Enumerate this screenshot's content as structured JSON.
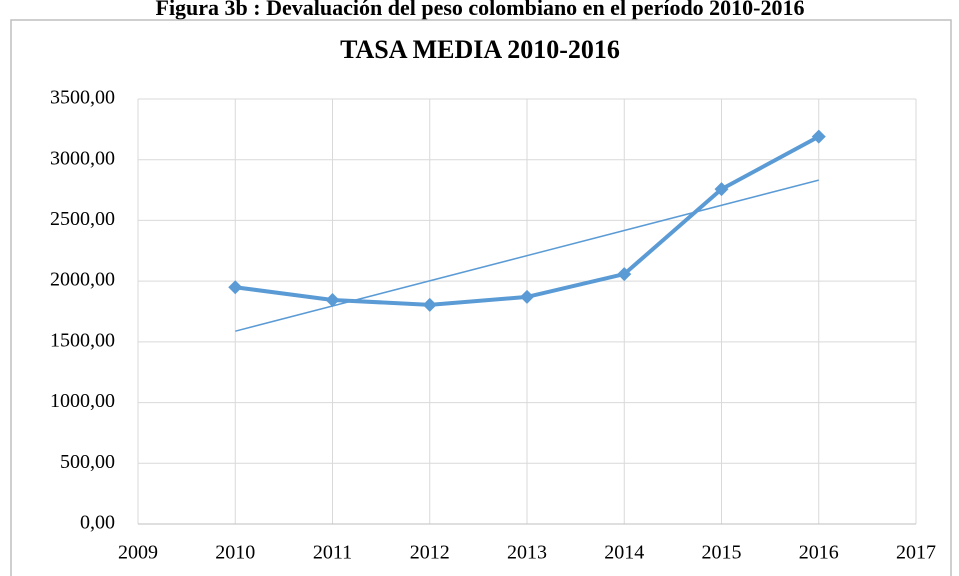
{
  "caption": "Figura 3b : Devaluación del peso colombiano en el período 2010-2016",
  "chart_data": {
    "type": "line",
    "title": "TASA MEDIA 2010-2016",
    "x": [
      2010,
      2011,
      2012,
      2013,
      2014,
      2015,
      2016
    ],
    "series": [
      {
        "color": "#5b9bd5",
        "values": [
          1950,
          1845,
          1805,
          1870,
          2058,
          2758,
          3190
        ]
      }
    ],
    "trendline": {
      "color": "#5b9bd5",
      "x": [
        2010,
        2016
      ],
      "values": [
        1588,
        2832
      ]
    },
    "xlim": [
      2009,
      2017
    ],
    "xticks": [
      2009,
      2010,
      2011,
      2012,
      2013,
      2014,
      2015,
      2016,
      2017
    ],
    "ylim": [
      0,
      3500
    ],
    "yticks": [
      {
        "value": 0,
        "label": "0,00"
      },
      {
        "value": 500,
        "label": "500,00"
      },
      {
        "value": 1000,
        "label": "1000,00"
      },
      {
        "value": 1500,
        "label": "1500,00"
      },
      {
        "value": 2000,
        "label": "2000,00"
      },
      {
        "value": 2500,
        "label": "2500,00"
      },
      {
        "value": 3000,
        "label": "3000,00"
      },
      {
        "value": 3500,
        "label": "3500,00"
      }
    ],
    "grid": true
  }
}
